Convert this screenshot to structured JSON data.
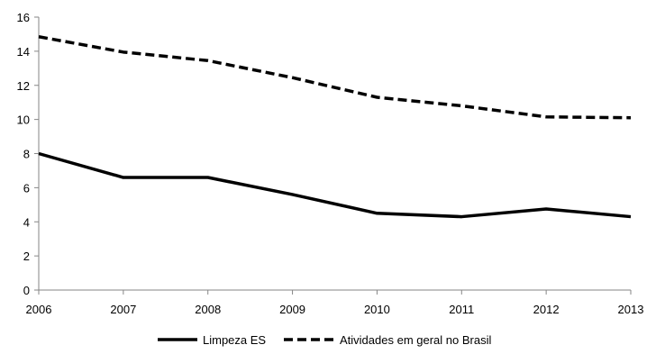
{
  "chart_data": {
    "type": "line",
    "x": [
      "2006",
      "2007",
      "2008",
      "2009",
      "2010",
      "2011",
      "2012",
      "2013"
    ],
    "ylim": [
      0,
      16
    ],
    "yticks": [
      0,
      2,
      4,
      6,
      8,
      10,
      12,
      14,
      16
    ],
    "grid": false,
    "legend_position": "bottom",
    "series": [
      {
        "name": "Limpeza ES",
        "values": [
          8.0,
          6.6,
          6.6,
          5.6,
          4.5,
          4.3,
          4.75,
          4.3
        ],
        "color": "#000000",
        "style": "solid"
      },
      {
        "name": "Atividades em geral no Brasil",
        "values": [
          14.85,
          13.95,
          13.45,
          12.45,
          11.3,
          10.8,
          10.15,
          10.1
        ],
        "color": "#000000",
        "style": "dashed"
      }
    ]
  }
}
